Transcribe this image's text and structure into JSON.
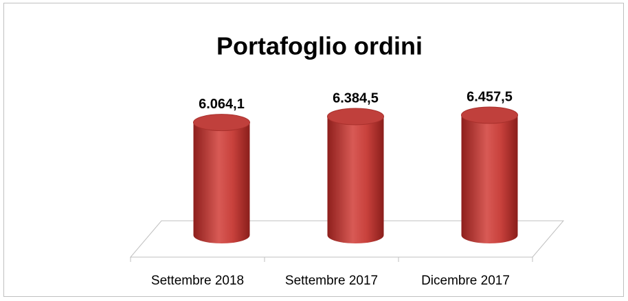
{
  "chart_data": {
    "type": "bar",
    "title": "Portafoglio ordini",
    "categories": [
      "Settembre 2018",
      "Settembre 2017",
      "Dicembre 2017"
    ],
    "values": [
      6064.1,
      6384.5,
      6457.5
    ],
    "value_labels": [
      "6.064,1",
      "6.384,5",
      "6.457,5"
    ],
    "color": "#c0403c"
  }
}
